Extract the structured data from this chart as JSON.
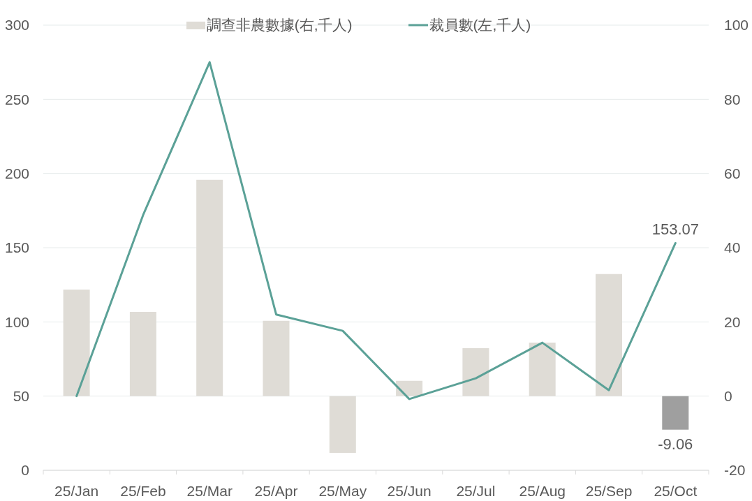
{
  "chart_data": {
    "type": "bar",
    "categories": [
      "25/Jan",
      "25/Feb",
      "25/Mar",
      "25/Apr",
      "25/May",
      "25/Jun",
      "25/Jul",
      "25/Aug",
      "25/Sep",
      "25/Oct"
    ],
    "series": [
      {
        "name": "調查非農數據(右,千人)",
        "axis": "y2",
        "color": "#dfdcd6",
        "colors": [
          "#dfdcd6",
          "#dfdcd6",
          "#dfdcd6",
          "#dfdcd6",
          "#dfdcd6",
          "#dfdcd6",
          "#dfdcd6",
          "#dfdcd6",
          "#dfdcd6",
          "#9f9f9f"
        ],
        "values": [
          28.7,
          22.7,
          58.3,
          20.3,
          -15.3,
          4.1,
          12.9,
          14.4,
          32.9,
          -9.06
        ],
        "value_labels": [
          null,
          null,
          null,
          null,
          null,
          null,
          null,
          null,
          null,
          "-9.06"
        ]
      },
      {
        "name": "裁員數(左,千人)",
        "type": "line",
        "color": "#5ba197",
        "values": [
          50,
          172,
          275,
          105,
          94,
          48,
          62,
          86,
          54,
          153.07
        ],
        "value_labels": [
          null,
          null,
          null,
          null,
          null,
          null,
          null,
          null,
          null,
          "153.07"
        ]
      }
    ],
    "ylim": [
      0,
      300
    ],
    "yticks": [
      0,
      50,
      100,
      150,
      200,
      250,
      300
    ],
    "y2lim": [
      -20,
      100
    ],
    "y2ticks": [
      -20,
      0,
      20,
      40,
      60,
      80,
      100
    ],
    "grid": "y",
    "legend": "top"
  }
}
